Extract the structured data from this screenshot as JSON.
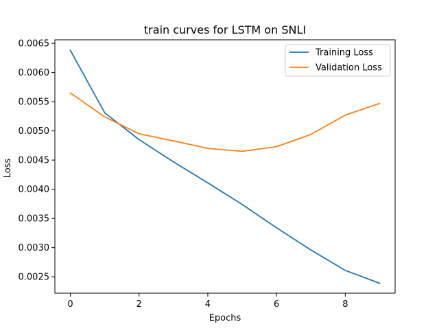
{
  "chart_data": {
    "type": "line",
    "title": "train curves for LSTM on SNLI",
    "xlabel": "Epochs",
    "ylabel": "Loss",
    "x": [
      0,
      1,
      2,
      3,
      4,
      5,
      6,
      7,
      8,
      9
    ],
    "xlim": [
      -0.45,
      9.45
    ],
    "ylim": [
      0.00222,
      0.00656
    ],
    "xticks": [
      0,
      2,
      4,
      6,
      8
    ],
    "yticks": [
      0.0025,
      0.003,
      0.0035,
      0.004,
      0.0045,
      0.005,
      0.0055,
      0.006,
      0.0065
    ],
    "ytick_labels": [
      "0.0025",
      "0.0030",
      "0.0035",
      "0.0040",
      "0.0045",
      "0.0050",
      "0.0055",
      "0.0060",
      "0.0065"
    ],
    "grid": false,
    "legend_position": "top-right",
    "series": [
      {
        "name": "Training Loss",
        "color": "#1f77b4",
        "values": [
          0.00638,
          0.00531,
          0.00485,
          0.00447,
          0.00411,
          0.00374,
          0.00334,
          0.00296,
          0.00261,
          0.00239
        ]
      },
      {
        "name": "Validation Loss",
        "color": "#ff7f0e",
        "values": [
          0.00565,
          0.00524,
          0.00495,
          0.00483,
          0.0047,
          0.00465,
          0.00473,
          0.00494,
          0.00527,
          0.00547
        ]
      }
    ]
  }
}
